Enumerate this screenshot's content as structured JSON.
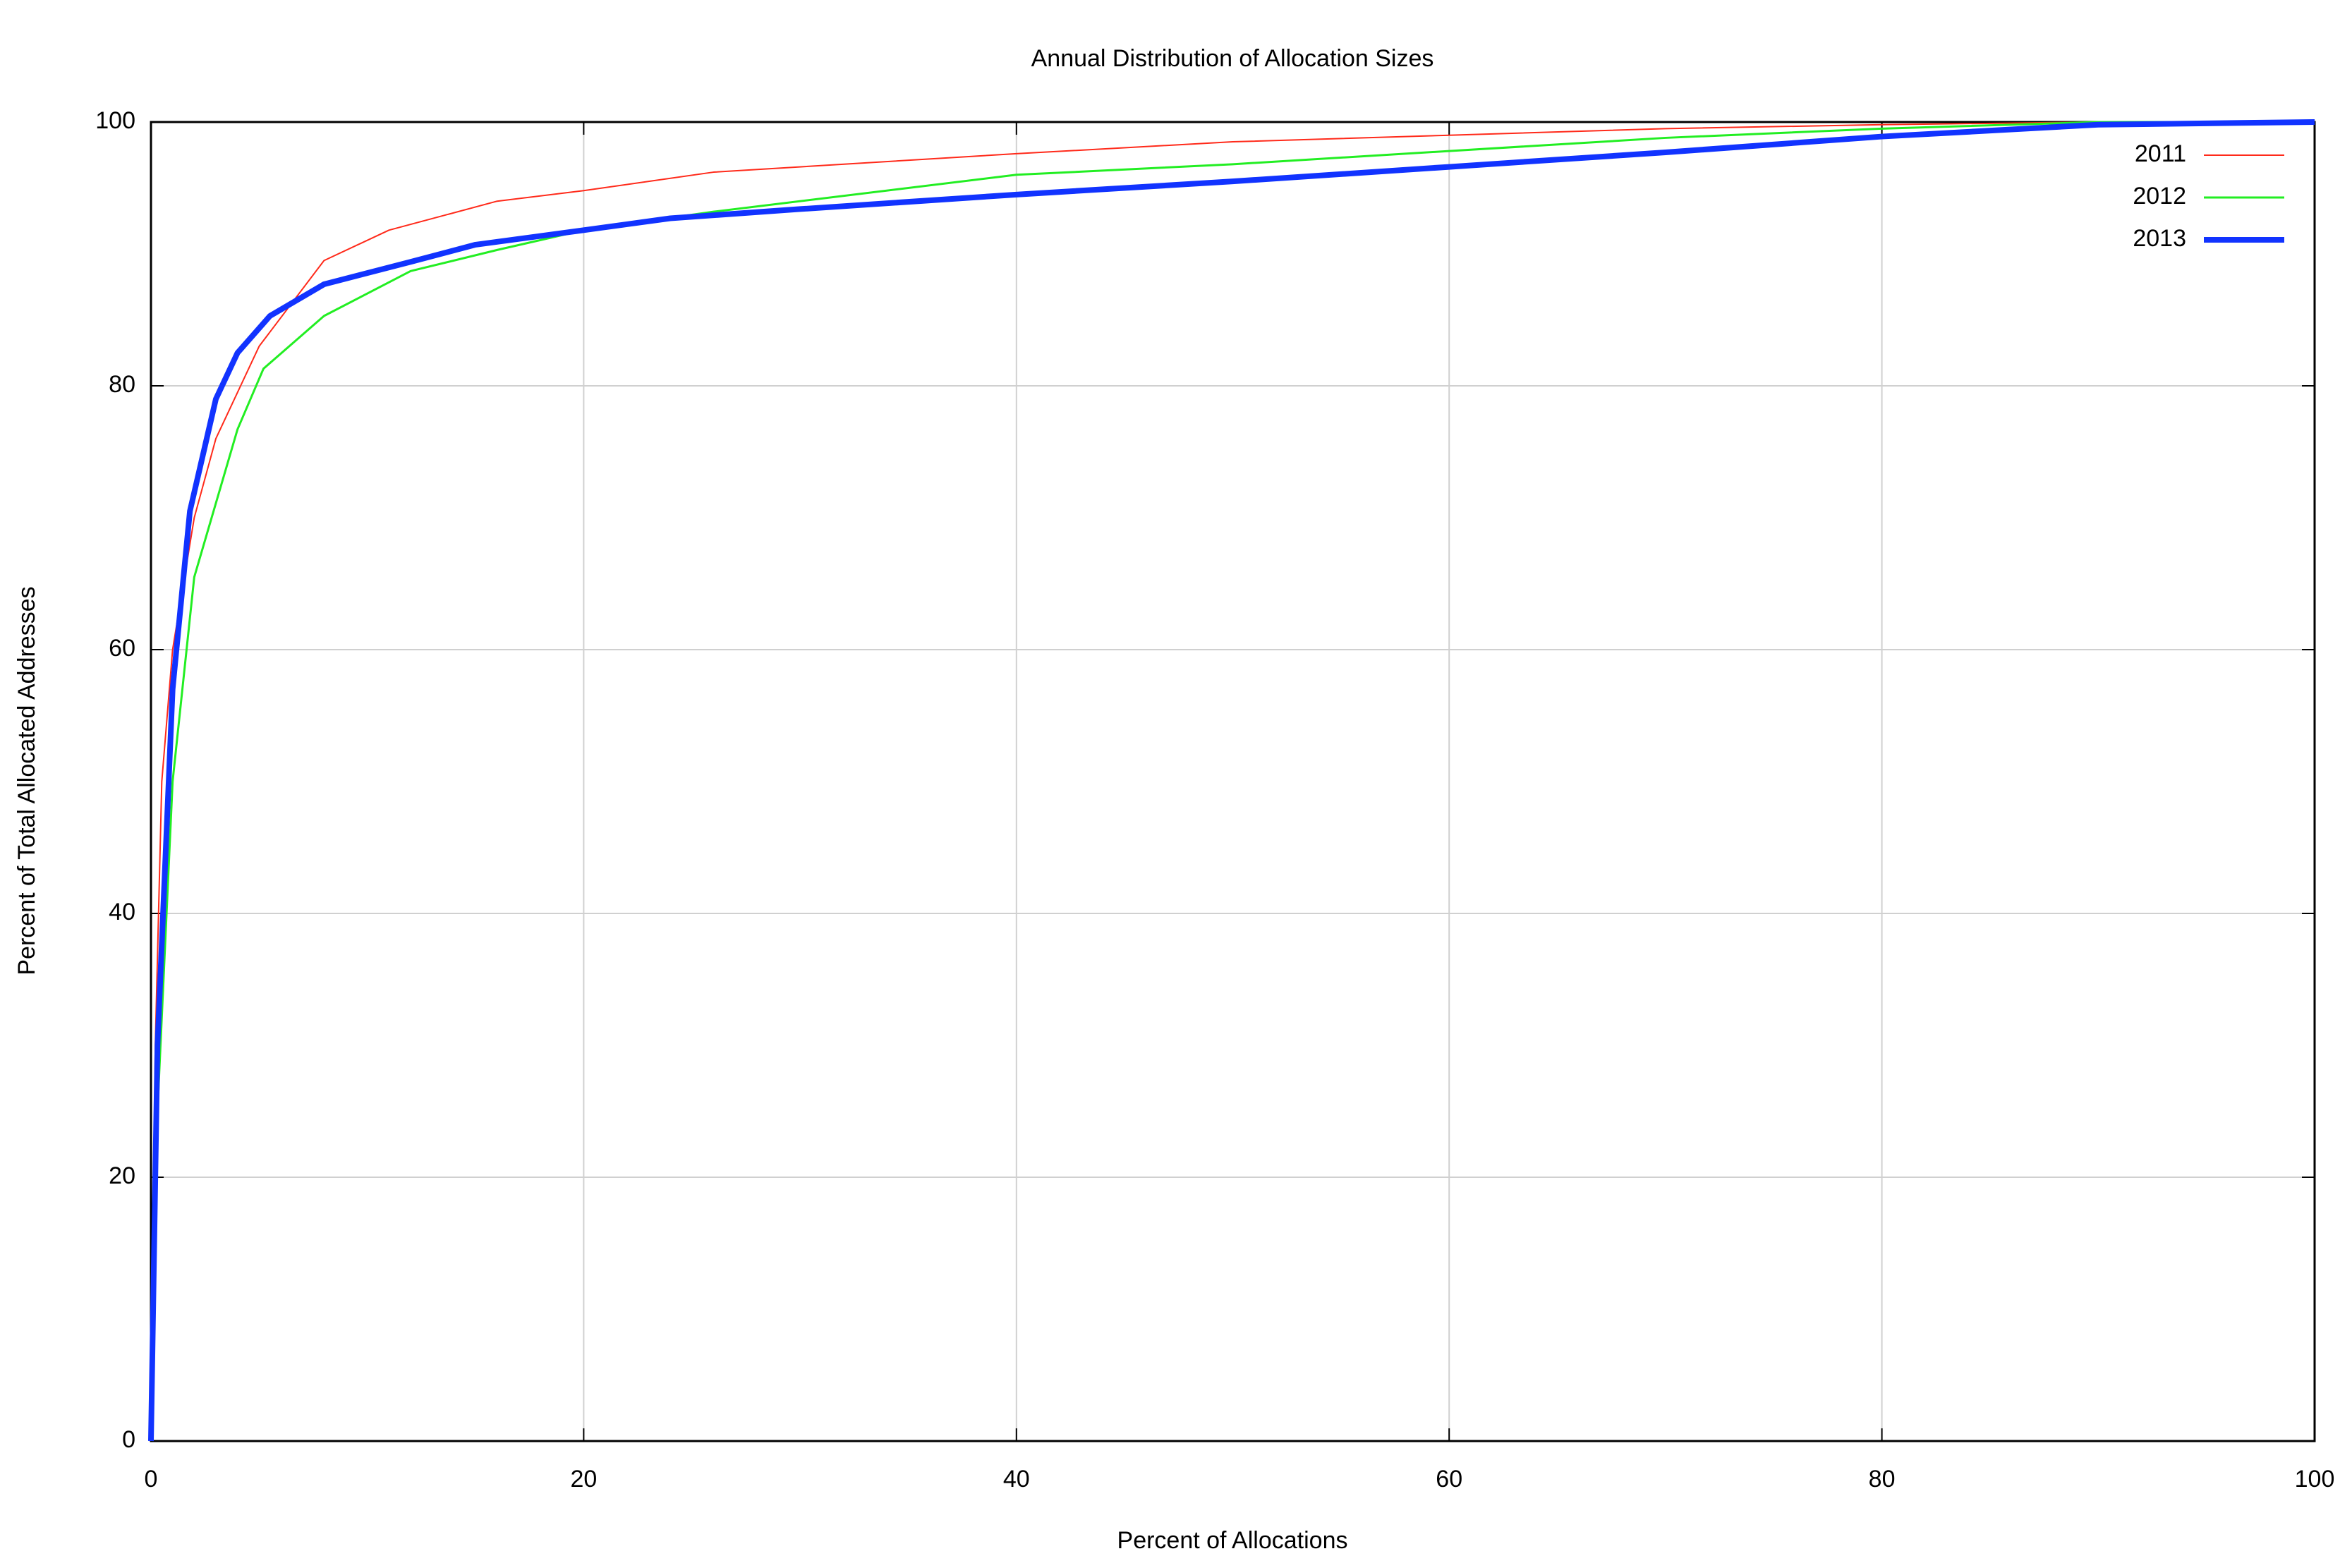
{
  "chart_data": {
    "type": "line",
    "title": "Annual Distribution of Allocation Sizes",
    "x_label": "Percent of Allocations",
    "y_label": "Percent of Total Allocated Addresses",
    "xlim": [
      0,
      100
    ],
    "xticks": [
      0,
      20,
      40,
      60,
      80,
      100
    ],
    "ylim": [
      0,
      100
    ],
    "yticks": [
      0,
      20,
      40,
      60,
      80,
      100
    ],
    "grid": true,
    "legend": "top-right",
    "series": [
      {
        "name": "2011",
        "color": "#ff2a1a",
        "x": [
          0,
          0.2,
          0.5,
          1,
          2,
          3,
          5,
          8,
          11,
          16,
          20,
          26,
          40,
          50,
          60,
          70,
          80,
          90,
          100
        ],
        "values": [
          0,
          30,
          50,
          60,
          70,
          76,
          83,
          89.5,
          91.8,
          94,
          94.8,
          96.2,
          97.6,
          98.5,
          99,
          99.5,
          99.8,
          100,
          100
        ]
      },
      {
        "name": "2012",
        "color": "#22ee22",
        "x": [
          0,
          0.3,
          1,
          2,
          4,
          5.2,
          8,
          12,
          16,
          20,
          26,
          40,
          50,
          60,
          70,
          80,
          90,
          100
        ],
        "values": [
          0,
          25,
          50,
          65.5,
          76.7,
          81.3,
          85.3,
          88.7,
          90.3,
          91.8,
          93.2,
          96,
          96.8,
          97.8,
          98.8,
          99.5,
          100,
          100
        ]
      },
      {
        "name": "2013",
        "color": "#1133ff",
        "x": [
          0,
          0.3,
          1,
          1.8,
          3,
          4,
          5.5,
          8,
          12,
          15,
          20,
          24,
          30,
          40,
          50,
          60,
          70,
          80,
          90,
          100
        ],
        "values": [
          0,
          30,
          57,
          70.5,
          79,
          82.5,
          85.3,
          87.7,
          89.4,
          90.7,
          91.8,
          92.7,
          93.4,
          94.5,
          95.5,
          96.6,
          97.7,
          98.9,
          99.8,
          100
        ]
      }
    ]
  }
}
